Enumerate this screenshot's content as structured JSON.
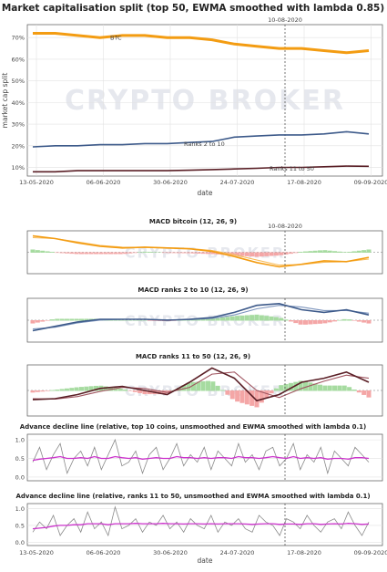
{
  "title": "Market capitalisation split (top 50, EWMA smoothed with lambda 0.85)",
  "watermark": "CRYPTO BROKER",
  "marker_date_label": "10-08-2020",
  "date_ticks": [
    "13-05-2020",
    "06-06-2020",
    "30-06-2020",
    "24-07-2020",
    "17-08-2020",
    "09-09-2020"
  ],
  "xlabel": "date",
  "colors": {
    "btc": "#f39c12",
    "ranks_2_10": "#3d5a8a",
    "ranks_11_50": "#5a1f26",
    "macd_green": "#a6dba0",
    "macd_red": "#f4a6a6",
    "adl_raw": "#8a8a8a",
    "adl_smoothed": "#cc33cc"
  },
  "chart_data": [
    {
      "type": "line",
      "title": "Market capitalisation split (top 50, EWMA smoothed with lambda 0.85)",
      "xlabel": "date",
      "ylabel": "market cap split",
      "yticks": [
        "10%",
        "20%",
        "30%",
        "40%",
        "50%",
        "60%",
        "70%"
      ],
      "ylim": [
        6,
        76
      ],
      "x_range": [
        "2020-05-13",
        "2020-09-11"
      ],
      "marker_date": "2020-08-10",
      "series": [
        {
          "name": "BTC",
          "values": [
            72,
            72,
            71,
            70,
            71,
            71,
            70,
            70,
            69,
            67,
            66,
            65,
            65,
            64,
            63,
            64
          ]
        },
        {
          "name": "Ranks 2 to 10",
          "values": [
            19.5,
            20,
            20,
            20.5,
            20.5,
            21,
            21,
            21.5,
            22,
            24,
            24.5,
            25,
            25,
            25.5,
            26.5,
            25.5
          ]
        },
        {
          "name": "Ranks 11 to 50",
          "values": [
            8,
            8,
            8.5,
            8.5,
            8.5,
            8.5,
            8.5,
            8.7,
            9,
            9.3,
            9.6,
            10,
            10,
            10.3,
            10.6,
            10.5
          ]
        }
      ],
      "grid": true
    },
    {
      "type": "line",
      "title": "MACD bitcoin (12, 26, 9)",
      "marker_date_label": "10-08-2020",
      "macd": [
        0.95,
        0.8,
        0.55,
        0.35,
        0.25,
        0.3,
        0.25,
        0.2,
        0.05,
        -0.25,
        -0.6,
        -0.85,
        -0.7,
        -0.5,
        -0.55,
        -0.3
      ],
      "signal": [
        0.85,
        0.8,
        0.6,
        0.4,
        0.3,
        0.28,
        0.26,
        0.22,
        0.1,
        -0.15,
        -0.45,
        -0.75,
        -0.72,
        -0.58,
        -0.55,
        -0.4
      ]
    },
    {
      "type": "line",
      "title": "MACD ranks 2 to 10 (12, 26, 9)",
      "macd": [
        -0.6,
        -0.35,
        -0.1,
        0.05,
        0.05,
        0.05,
        0.0,
        0.05,
        0.15,
        0.45,
        0.85,
        0.95,
        0.6,
        0.45,
        0.6,
        0.3
      ],
      "signal": [
        -0.5,
        -0.4,
        -0.15,
        0.0,
        0.05,
        0.05,
        0.02,
        0.03,
        0.1,
        0.3,
        0.65,
        0.85,
        0.75,
        0.55,
        0.55,
        0.4
      ]
    },
    {
      "type": "line",
      "title": "MACD ranks 11 to 50 (12, 26, 9)",
      "macd": [
        -0.45,
        -0.4,
        -0.2,
        0.1,
        0.2,
        0.0,
        -0.2,
        0.4,
        1.1,
        0.6,
        -0.5,
        -0.2,
        0.4,
        0.6,
        0.9,
        0.4
      ],
      "signal": [
        -0.4,
        -0.42,
        -0.3,
        -0.05,
        0.15,
        0.1,
        -0.1,
        0.15,
        0.8,
        0.9,
        0.0,
        -0.35,
        0.1,
        0.45,
        0.75,
        0.6
      ]
    },
    {
      "type": "line",
      "title": "Advance decline line (relative, top 10 coins, unsmoothed and EWMA smoothed with lambda 0.1)",
      "yticks": [
        "0.0",
        "0.5",
        "1.0"
      ],
      "ylim": [
        -0.1,
        1.15
      ],
      "series": [
        {
          "name": "unsmoothed",
          "values": [
            0.4,
            0.8,
            0.2,
            0.6,
            0.9,
            0.1,
            0.5,
            0.7,
            0.3,
            0.8,
            0.2,
            0.6,
            1.0,
            0.3,
            0.4,
            0.7,
            0.1,
            0.6,
            0.8,
            0.2,
            0.5,
            0.9,
            0.3,
            0.6,
            0.4,
            0.8,
            0.2,
            0.7,
            0.5,
            0.3,
            0.9,
            0.4,
            0.6,
            0.2,
            0.7,
            0.8,
            0.3,
            0.5,
            0.9,
            0.2,
            0.6,
            0.4,
            0.8,
            0.1,
            0.7,
            0.5,
            0.3,
            0.8,
            0.6,
            0.4
          ]
        },
        {
          "name": "smoothed",
          "values": [
            0.45,
            0.48,
            0.5,
            0.52,
            0.55,
            0.5,
            0.5,
            0.52,
            0.5,
            0.55,
            0.5,
            0.5,
            0.55,
            0.52,
            0.5,
            0.52,
            0.48,
            0.5,
            0.52,
            0.5,
            0.5,
            0.55,
            0.52,
            0.52,
            0.5,
            0.52,
            0.5,
            0.52,
            0.52,
            0.5,
            0.55,
            0.52,
            0.52,
            0.5,
            0.52,
            0.55,
            0.52,
            0.5,
            0.55,
            0.5,
            0.52,
            0.5,
            0.52,
            0.48,
            0.5,
            0.5,
            0.48,
            0.52,
            0.52,
            0.5
          ]
        }
      ]
    },
    {
      "type": "line",
      "title": "Advance decline line (relative, ranks 11 to 50, unsmoothed and EWMA smoothed with lambda 0.1)",
      "yticks": [
        "0.0",
        "0.5",
        "1.0"
      ],
      "ylim": [
        -0.1,
        1.15
      ],
      "xlabel": "date",
      "series": [
        {
          "name": "unsmoothed",
          "values": [
            0.3,
            0.6,
            0.4,
            0.8,
            0.2,
            0.5,
            0.7,
            0.3,
            0.9,
            0.4,
            0.6,
            0.2,
            1.05,
            0.4,
            0.5,
            0.7,
            0.3,
            0.6,
            0.5,
            0.8,
            0.4,
            0.6,
            0.3,
            0.7,
            0.5,
            0.4,
            0.8,
            0.3,
            0.6,
            0.5,
            0.7,
            0.4,
            0.3,
            0.8,
            0.6,
            0.5,
            0.2,
            0.7,
            0.6,
            0.4,
            0.8,
            0.5,
            0.3,
            0.6,
            0.7,
            0.4,
            0.9,
            0.5,
            0.2,
            0.6
          ]
        },
        {
          "name": "smoothed",
          "values": [
            0.4,
            0.42,
            0.44,
            0.48,
            0.5,
            0.5,
            0.52,
            0.52,
            0.55,
            0.55,
            0.55,
            0.52,
            0.55,
            0.55,
            0.55,
            0.56,
            0.55,
            0.55,
            0.55,
            0.56,
            0.55,
            0.55,
            0.54,
            0.55,
            0.55,
            0.54,
            0.55,
            0.54,
            0.55,
            0.55,
            0.55,
            0.54,
            0.53,
            0.54,
            0.55,
            0.55,
            0.53,
            0.54,
            0.54,
            0.53,
            0.55,
            0.55,
            0.53,
            0.54,
            0.55,
            0.54,
            0.56,
            0.55,
            0.53,
            0.54
          ]
        }
      ]
    }
  ]
}
